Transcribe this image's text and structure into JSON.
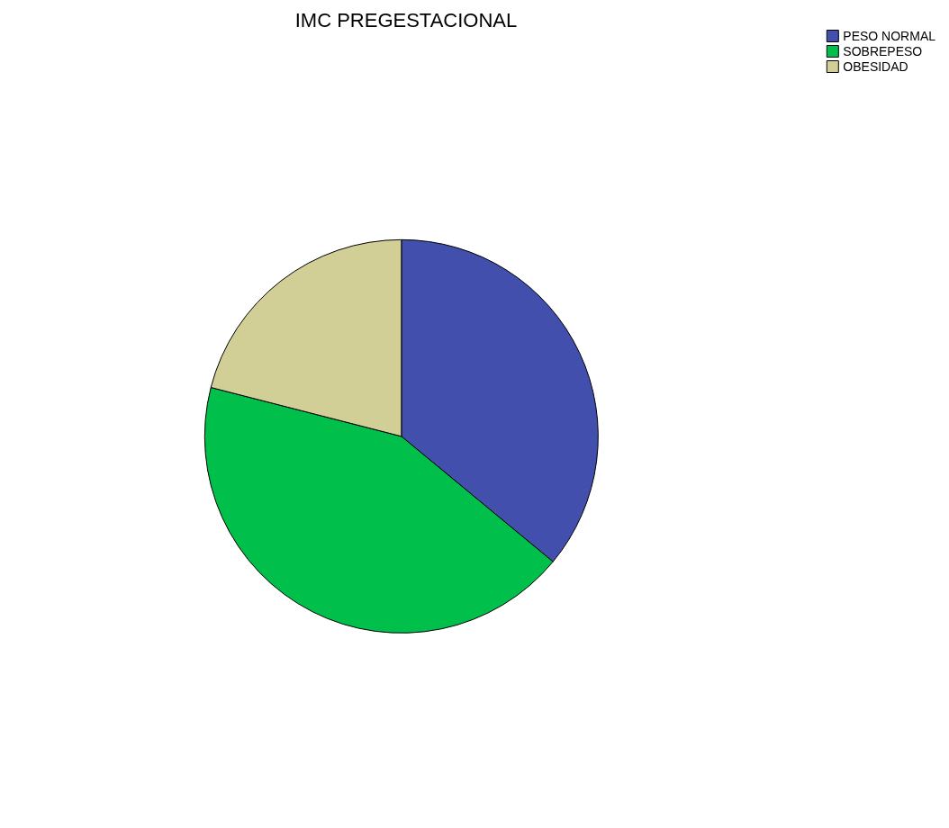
{
  "chart_data": {
    "type": "pie",
    "title": "IMC PREGESTACIONAL",
    "categories": [
      "PESO NORMAL",
      "SOBREPESO",
      "OBESIDAD"
    ],
    "values": [
      36,
      43,
      21
    ],
    "colors": [
      "#424fad",
      "#00c04b",
      "#d2cf96"
    ],
    "legend": "top right"
  }
}
